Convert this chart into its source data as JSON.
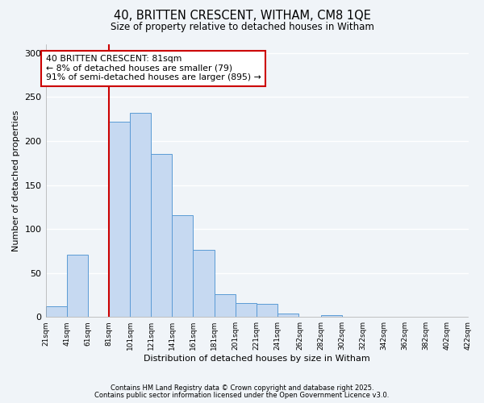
{
  "title": "40, BRITTEN CRESCENT, WITHAM, CM8 1QE",
  "subtitle": "Size of property relative to detached houses in Witham",
  "xlabel": "Distribution of detached houses by size in Witham",
  "ylabel": "Number of detached properties",
  "bar_color": "#c6d9f1",
  "bar_edge_color": "#5b9bd5",
  "bins": [
    21,
    41,
    61,
    81,
    101,
    121,
    141,
    161,
    181,
    201,
    221,
    241,
    262,
    282,
    302,
    322,
    342,
    362,
    382,
    402,
    422
  ],
  "counts": [
    12,
    71,
    0,
    222,
    232,
    185,
    116,
    76,
    26,
    16,
    15,
    4,
    0,
    2,
    0,
    0,
    0,
    0,
    0,
    0
  ],
  "tick_labels": [
    "21sqm",
    "41sqm",
    "61sqm",
    "81sqm",
    "101sqm",
    "121sqm",
    "141sqm",
    "161sqm",
    "181sqm",
    "201sqm",
    "221sqm",
    "241sqm",
    "262sqm",
    "282sqm",
    "302sqm",
    "322sqm",
    "342sqm",
    "362sqm",
    "382sqm",
    "402sqm",
    "422sqm"
  ],
  "vline_x": 81,
  "vline_color": "#cc0000",
  "annotation_line1": "40 BRITTEN CRESCENT: 81sqm",
  "annotation_line2": "← 8% of detached houses are smaller (79)",
  "annotation_line3": "91% of semi-detached houses are larger (895) →",
  "ylim": [
    0,
    310
  ],
  "yticks": [
    0,
    50,
    100,
    150,
    200,
    250,
    300
  ],
  "footnote1": "Contains HM Land Registry data © Crown copyright and database right 2025.",
  "footnote2": "Contains public sector information licensed under the Open Government Licence v3.0.",
  "background_color": "#f0f4f8",
  "grid_color": "#ffffff"
}
